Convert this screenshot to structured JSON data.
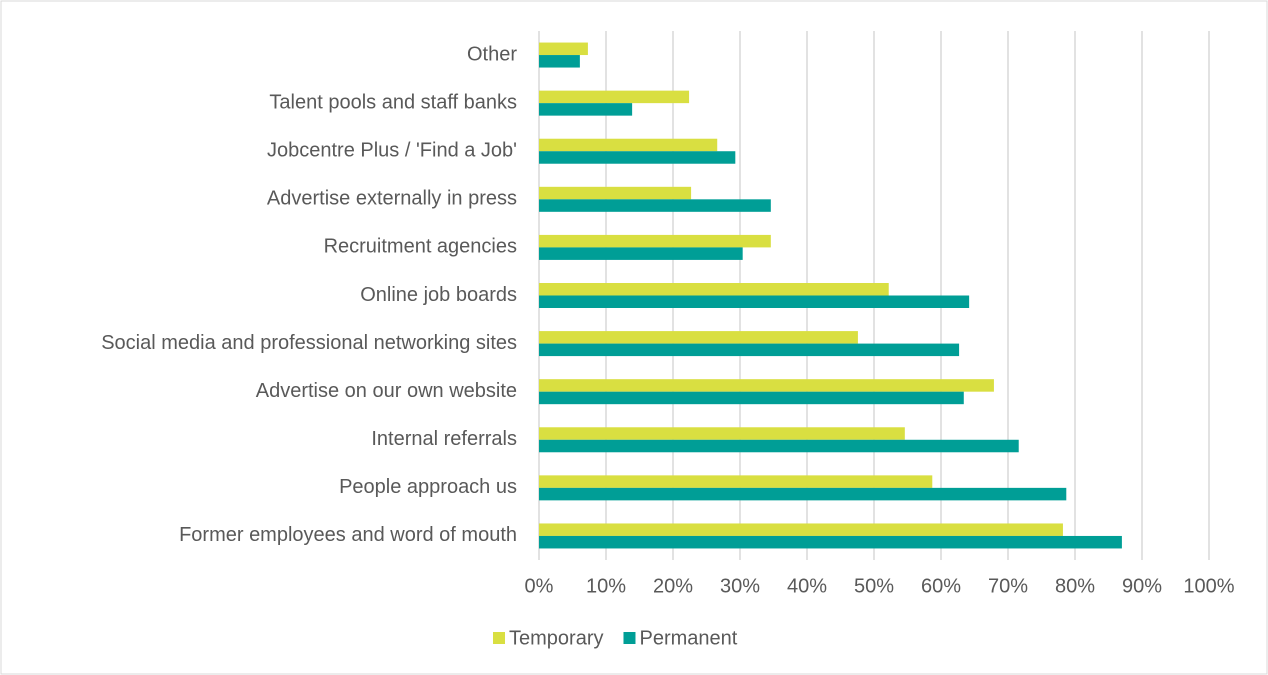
{
  "chart_data": {
    "type": "hbar",
    "categories": [
      "Other",
      "Talent pools and staff banks",
      "Jobcentre Plus / 'Find a Job'",
      "Advertise externally in press",
      "Recruitment agencies",
      "Online job boards",
      "Social media and professional networking sites",
      "Advertise on our own website",
      "Internal referrals",
      "People approach us",
      "Former employees and word of mouth"
    ],
    "series": [
      {
        "name": "Temporary",
        "color": "#d9df41",
        "values": [
          7.3,
          22.4,
          26.6,
          22.7,
          34.6,
          52.2,
          47.6,
          67.9,
          54.6,
          58.7,
          78.2
        ]
      },
      {
        "name": "Permanent",
        "color": "#009e96",
        "values": [
          6.1,
          13.9,
          29.3,
          34.6,
          30.4,
          64.2,
          62.7,
          63.4,
          71.6,
          78.7,
          87.0
        ]
      }
    ],
    "xlim": [
      0,
      100
    ],
    "xticks": [
      {
        "value": 0,
        "label": "0%"
      },
      {
        "value": 10,
        "label": "10%"
      },
      {
        "value": 20,
        "label": "20%"
      },
      {
        "value": 30,
        "label": "30%"
      },
      {
        "value": 40,
        "label": "40%"
      },
      {
        "value": 50,
        "label": "50%"
      },
      {
        "value": 60,
        "label": "60%"
      },
      {
        "value": 70,
        "label": "70%"
      },
      {
        "value": 80,
        "label": "80%"
      },
      {
        "value": 90,
        "label": "90%"
      },
      {
        "value": 100,
        "label": "100%"
      }
    ],
    "grid": true,
    "legend": "bottom"
  }
}
